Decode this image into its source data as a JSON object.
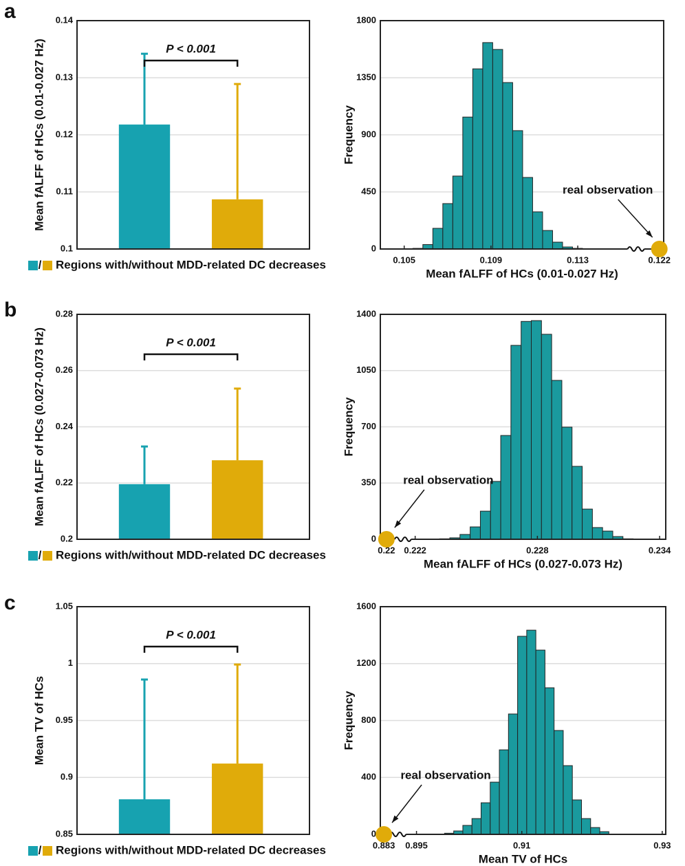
{
  "panels": [
    "a",
    "b",
    "c"
  ],
  "chart_data": [
    {
      "type": "bar",
      "ylabel": "Mean fALFF of HCs (0.01-0.027 Hz)",
      "categories": [
        null,
        null
      ],
      "values": [
        0.1218,
        0.1087
      ],
      "errors": [
        0.0124,
        0.0202
      ],
      "colors": [
        "#17a2b0",
        "#e0ab0a"
      ],
      "ylim": [
        0.1,
        0.14
      ],
      "yticks": [
        0.1,
        0.11,
        0.12,
        0.13,
        0.14
      ],
      "grid": true,
      "annotation": "P < 0.001",
      "legend_separator": "/",
      "legend": "Regions with/without MDD-related DC decreases"
    },
    {
      "type": "histogram",
      "xlabel": "Mean fALFF of HCs (0.01-0.027 Hz)",
      "ylabel": "Frequency",
      "color": "#1a9a9e",
      "bins": [
        0.1054,
        0.10586,
        0.10632,
        0.10678,
        0.10724,
        0.1077,
        0.10816,
        0.10862,
        0.10908,
        0.10954,
        0.11,
        0.11046,
        0.11092,
        0.11138,
        0.11184,
        0.1123,
        0.11276,
        0.11322
      ],
      "counts": [
        5,
        35,
        163,
        358,
        575,
        1040,
        1420,
        1627,
        1573,
        1312,
        933,
        564,
        293,
        146,
        54,
        16,
        5
      ],
      "xlim": [
        0.1039,
        0.1222
      ],
      "xbreak": [
        0.1153,
        0.1213
      ],
      "xticks": [
        0.105,
        0.109,
        0.113,
        0.122
      ],
      "ylim": [
        0,
        1800
      ],
      "yticks": [
        0,
        450,
        900,
        1350,
        1800
      ],
      "grid": true,
      "observation": 0.122,
      "observation_color": "#e0ab0a",
      "annotation": "real observation"
    },
    {
      "type": "bar",
      "ylabel": "Mean fALFF of HCs (0.027-0.073 Hz)",
      "categories": [
        null,
        null
      ],
      "values": [
        0.2196,
        0.2281
      ],
      "errors": [
        0.0134,
        0.0255
      ],
      "colors": [
        "#17a2b0",
        "#e0ab0a"
      ],
      "ylim": [
        0.2,
        0.28
      ],
      "yticks": [
        0.2,
        0.22,
        0.24,
        0.26,
        0.28
      ],
      "grid": true,
      "annotation": "P < 0.001",
      "legend_separator": "/",
      "legend": "Regions with/without MDD-related DC decreases"
    },
    {
      "type": "histogram",
      "xlabel": "Mean fALFF of HCs (0.027-0.073 Hz)",
      "ylabel": "Frequency",
      "color": "#1a9a9e",
      "bins": [
        0.2232,
        0.2237,
        0.2242,
        0.2247,
        0.2252,
        0.2257,
        0.2262,
        0.2267,
        0.2272,
        0.2277,
        0.2282,
        0.2287,
        0.2292,
        0.2297,
        0.2302,
        0.2307,
        0.2312,
        0.2317,
        0.2322,
        0.2327
      ],
      "counts": [
        3,
        9,
        30,
        77,
        175,
        360,
        646,
        1207,
        1356,
        1361,
        1276,
        989,
        698,
        454,
        188,
        73,
        51,
        17,
        3
      ],
      "xlim": [
        0.2197,
        0.2343
      ],
      "xbreak": [
        0.2204,
        0.2218
      ],
      "xticks": [
        0.22,
        0.222,
        0.228,
        0.234
      ],
      "ylim": [
        0,
        1400
      ],
      "yticks": [
        0,
        350,
        700,
        1050,
        1400
      ],
      "grid": true,
      "observation": 0.22,
      "observation_color": "#e0ab0a",
      "annotation": "real observation"
    },
    {
      "type": "bar",
      "ylabel": "Mean TV of HCs",
      "categories": [
        null,
        null
      ],
      "values": [
        0.8808,
        0.9122
      ],
      "errors": [
        0.1052,
        0.087
      ],
      "colors": [
        "#17a2b0",
        "#e0ab0a"
      ],
      "ylim": [
        0.85,
        1.05
      ],
      "yticks": [
        0.85,
        0.9,
        0.95,
        1,
        1.05
      ],
      "grid": true,
      "annotation": "P < 0.001",
      "legend_separator": "/",
      "legend": "Regions with/without MDD-related DC decreases"
    },
    {
      "type": "histogram",
      "xlabel": "Mean TV of HCs",
      "ylabel": "Frequency",
      "color": "#1a9a9e",
      "bins": [
        0.899,
        0.9003,
        0.9016,
        0.9029,
        0.9042,
        0.9055,
        0.9068,
        0.9081,
        0.9094,
        0.9107,
        0.912,
        0.9133,
        0.9146,
        0.9159,
        0.9172,
        0.9185,
        0.9198,
        0.9211,
        0.9224
      ],
      "counts": [
        8,
        24,
        63,
        111,
        222,
        367,
        594,
        846,
        1392,
        1435,
        1295,
        1030,
        730,
        483,
        242,
        111,
        48,
        19
      ],
      "xlim": [
        0.8825,
        0.9305
      ],
      "xbreak": [
        0.8838,
        0.8935
      ],
      "xticks": [
        0.883,
        0.895,
        0.91,
        0.93
      ],
      "ylim": [
        0,
        1600
      ],
      "yticks": [
        0,
        400,
        800,
        1200,
        1600
      ],
      "grid": true,
      "observation": 0.883,
      "observation_color": "#e0ab0a",
      "annotation": "real observation"
    }
  ]
}
